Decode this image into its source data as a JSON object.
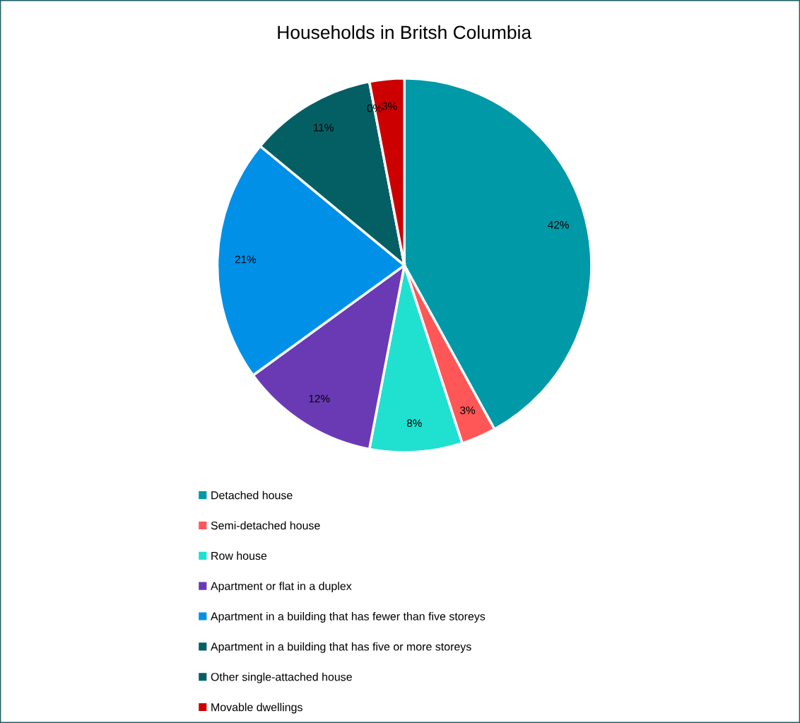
{
  "chart_data": {
    "type": "pie",
    "title": "Households in Britsh Columbia",
    "categories": [
      "Detached house",
      "Semi-detached house",
      "Row house",
      "Apartment or flat in a duplex",
      "Apartment in a building that has fewer than five storeys",
      "Apartment in a building that has five or more storeys",
      "Other single-attached house",
      "Movable dwellings"
    ],
    "values": [
      42,
      3,
      8,
      12,
      21,
      11,
      0,
      3
    ],
    "value_labels": [
      "42%",
      "3%",
      "8%",
      "12%",
      "21%",
      "11%",
      "0%",
      "3%"
    ],
    "colors": [
      "#0099a8",
      "#ff5757",
      "#20e0d0",
      "#6a3ab5",
      "#0090e8",
      "#045f65",
      "#045f65",
      "#cc0000"
    ],
    "legend": "bottom"
  }
}
